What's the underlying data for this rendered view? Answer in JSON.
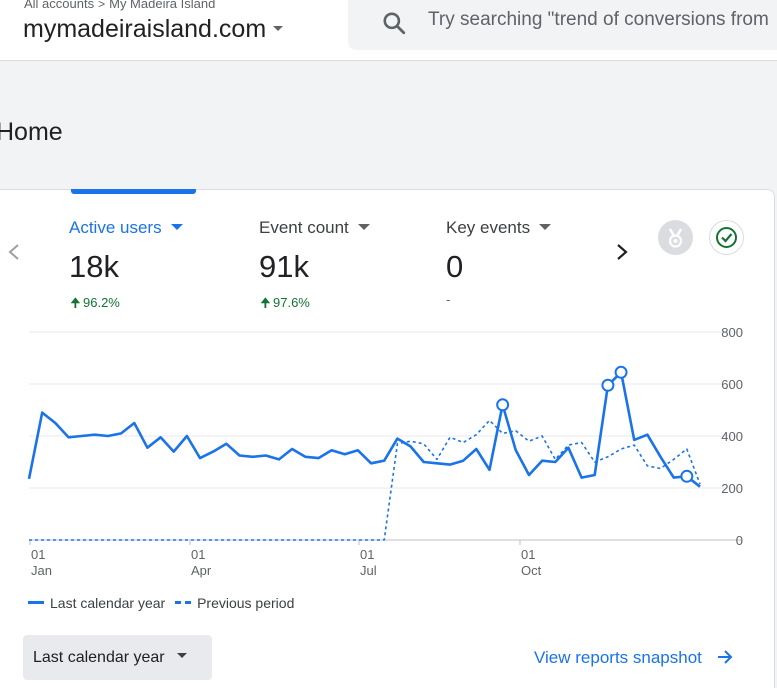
{
  "header": {
    "breadcrumb": [
      "All accounts",
      "My Madeira Island"
    ],
    "property_name": "mymadeiraisland.com",
    "search_placeholder": "Try searching \"trend of conversions from"
  },
  "page": {
    "title": "Home"
  },
  "metrics": [
    {
      "label": "Active users",
      "value": "18k",
      "change": "96.2%",
      "trend": "up",
      "active": true
    },
    {
      "label": "Event count",
      "value": "91k",
      "change": "97.6%",
      "trend": "up",
      "active": false
    },
    {
      "label": "Key events",
      "value": "0",
      "change": "-",
      "trend": "none",
      "active": false
    }
  ],
  "icons": {
    "prev": "chevron-left-icon",
    "next": "chevron-right-icon",
    "insights": "insights-badge-icon",
    "status": "check-circle-icon",
    "search": "search-icon",
    "link_arrow": "arrow-right-icon"
  },
  "colors": {
    "accent": "#1a73e8",
    "positive": "#137333",
    "text": "#202124",
    "muted": "#5f6368"
  },
  "chart_data": {
    "type": "line",
    "y_ticks": [
      "800",
      "600",
      "400",
      "200",
      "0"
    ],
    "ylim": [
      0,
      800
    ],
    "x_ticks": [
      {
        "day": "01",
        "month": "Jan"
      },
      {
        "day": "01",
        "month": "Apr"
      },
      {
        "day": "01",
        "month": "Jul"
      },
      {
        "day": "01",
        "month": "Oct"
      }
    ],
    "x_range": [
      0,
      51
    ],
    "series": [
      {
        "name": "Last calendar year",
        "style": "solid",
        "values": [
          235,
          490,
          450,
          395,
          400,
          405,
          400,
          410,
          450,
          355,
          395,
          340,
          400,
          315,
          340,
          370,
          325,
          320,
          325,
          310,
          350,
          320,
          315,
          345,
          330,
          345,
          295,
          305,
          390,
          360,
          300,
          295,
          290,
          305,
          350,
          270,
          520,
          345,
          250,
          305,
          300,
          355,
          240,
          250,
          595,
          645,
          385,
          405,
          320,
          240,
          245,
          205
        ],
        "markers": [
          36,
          44,
          45,
          50
        ]
      },
      {
        "name": "Previous period",
        "style": "dashed",
        "values": [
          0,
          0,
          0,
          0,
          0,
          0,
          0,
          0,
          0,
          0,
          0,
          0,
          0,
          0,
          0,
          0,
          0,
          0,
          0,
          0,
          0,
          0,
          0,
          0,
          0,
          0,
          0,
          0,
          370,
          380,
          370,
          310,
          395,
          375,
          405,
          460,
          410,
          420,
          380,
          400,
          310,
          365,
          375,
          300,
          320,
          350,
          365,
          285,
          275,
          310,
          350,
          215
        ]
      }
    ]
  },
  "footer": {
    "date_range_label": "Last calendar year",
    "view_link_label": "View reports snapshot"
  }
}
